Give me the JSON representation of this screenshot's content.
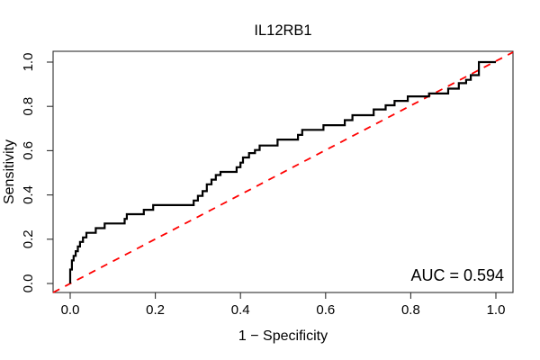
{
  "chart_data": {
    "type": "line",
    "subtype": "roc-step-curve",
    "title": "IL12RB1",
    "xlabel": "1 − Specificity",
    "ylabel": "Sensitivity",
    "annotation": "AUC = 0.594",
    "auc": 0.594,
    "xlim": [
      0.0,
      1.0
    ],
    "ylim": [
      0.0,
      1.0
    ],
    "grid": false,
    "legend": "none",
    "x_ticks": [
      0.0,
      0.2,
      0.4,
      0.6,
      0.8,
      1.0
    ],
    "y_ticks": [
      0.0,
      0.2,
      0.4,
      0.6,
      0.8,
      1.0
    ],
    "x_tick_labels": [
      "0.0",
      "0.2",
      "0.4",
      "0.6",
      "0.8",
      "1.0"
    ],
    "y_tick_labels": [
      "0.0",
      "0.2",
      "0.4",
      "0.6",
      "0.8",
      "1.0"
    ],
    "series": [
      {
        "name": "ROC curve",
        "color": "#000000",
        "line_style": "solid",
        "step_points": [
          [
            0.0,
            0.0
          ],
          [
            0.0,
            0.063
          ],
          [
            0.004,
            0.063
          ],
          [
            0.004,
            0.104
          ],
          [
            0.008,
            0.104
          ],
          [
            0.008,
            0.125
          ],
          [
            0.013,
            0.125
          ],
          [
            0.013,
            0.146
          ],
          [
            0.018,
            0.146
          ],
          [
            0.018,
            0.167
          ],
          [
            0.023,
            0.167
          ],
          [
            0.023,
            0.188
          ],
          [
            0.03,
            0.188
          ],
          [
            0.03,
            0.208
          ],
          [
            0.038,
            0.208
          ],
          [
            0.038,
            0.229
          ],
          [
            0.06,
            0.229
          ],
          [
            0.06,
            0.25
          ],
          [
            0.081,
            0.25
          ],
          [
            0.081,
            0.271
          ],
          [
            0.128,
            0.271
          ],
          [
            0.128,
            0.292
          ],
          [
            0.133,
            0.292
          ],
          [
            0.133,
            0.313
          ],
          [
            0.173,
            0.313
          ],
          [
            0.173,
            0.333
          ],
          [
            0.195,
            0.333
          ],
          [
            0.195,
            0.354
          ],
          [
            0.29,
            0.354
          ],
          [
            0.29,
            0.375
          ],
          [
            0.3,
            0.375
          ],
          [
            0.3,
            0.396
          ],
          [
            0.311,
            0.396
          ],
          [
            0.311,
            0.417
          ],
          [
            0.321,
            0.417
          ],
          [
            0.321,
            0.448
          ],
          [
            0.332,
            0.448
          ],
          [
            0.332,
            0.469
          ],
          [
            0.342,
            0.469
          ],
          [
            0.342,
            0.49
          ],
          [
            0.353,
            0.49
          ],
          [
            0.353,
            0.504
          ],
          [
            0.391,
            0.504
          ],
          [
            0.391,
            0.525
          ],
          [
            0.4,
            0.525
          ],
          [
            0.4,
            0.546
          ],
          [
            0.406,
            0.546
          ],
          [
            0.406,
            0.569
          ],
          [
            0.42,
            0.569
          ],
          [
            0.42,
            0.589
          ],
          [
            0.434,
            0.589
          ],
          [
            0.434,
            0.603
          ],
          [
            0.445,
            0.603
          ],
          [
            0.445,
            0.623
          ],
          [
            0.487,
            0.623
          ],
          [
            0.487,
            0.65
          ],
          [
            0.535,
            0.65
          ],
          [
            0.535,
            0.671
          ],
          [
            0.545,
            0.671
          ],
          [
            0.545,
            0.694
          ],
          [
            0.595,
            0.694
          ],
          [
            0.595,
            0.715
          ],
          [
            0.645,
            0.715
          ],
          [
            0.645,
            0.738
          ],
          [
            0.663,
            0.738
          ],
          [
            0.663,
            0.76
          ],
          [
            0.713,
            0.76
          ],
          [
            0.713,
            0.786
          ],
          [
            0.741,
            0.786
          ],
          [
            0.741,
            0.805
          ],
          [
            0.762,
            0.805
          ],
          [
            0.762,
            0.825
          ],
          [
            0.793,
            0.825
          ],
          [
            0.793,
            0.845
          ],
          [
            0.843,
            0.845
          ],
          [
            0.843,
            0.858
          ],
          [
            0.888,
            0.858
          ],
          [
            0.888,
            0.88
          ],
          [
            0.913,
            0.88
          ],
          [
            0.913,
            0.905
          ],
          [
            0.93,
            0.905
          ],
          [
            0.93,
            0.92
          ],
          [
            0.941,
            0.92
          ],
          [
            0.941,
            0.941
          ],
          [
            0.96,
            0.941
          ],
          [
            0.96,
            1.0
          ],
          [
            1.0,
            1.0
          ]
        ]
      },
      {
        "name": "Chance diagonal",
        "color": "#ff0000",
        "line_style": "dashed",
        "points": [
          [
            0.0,
            0.0
          ],
          [
            1.0,
            1.0
          ]
        ]
      }
    ]
  },
  "colors": {
    "background": "#ffffff",
    "curve": "#000000",
    "diagonal": "#ff0000",
    "frame": "#2e2e2e",
    "text": "#000000"
  }
}
